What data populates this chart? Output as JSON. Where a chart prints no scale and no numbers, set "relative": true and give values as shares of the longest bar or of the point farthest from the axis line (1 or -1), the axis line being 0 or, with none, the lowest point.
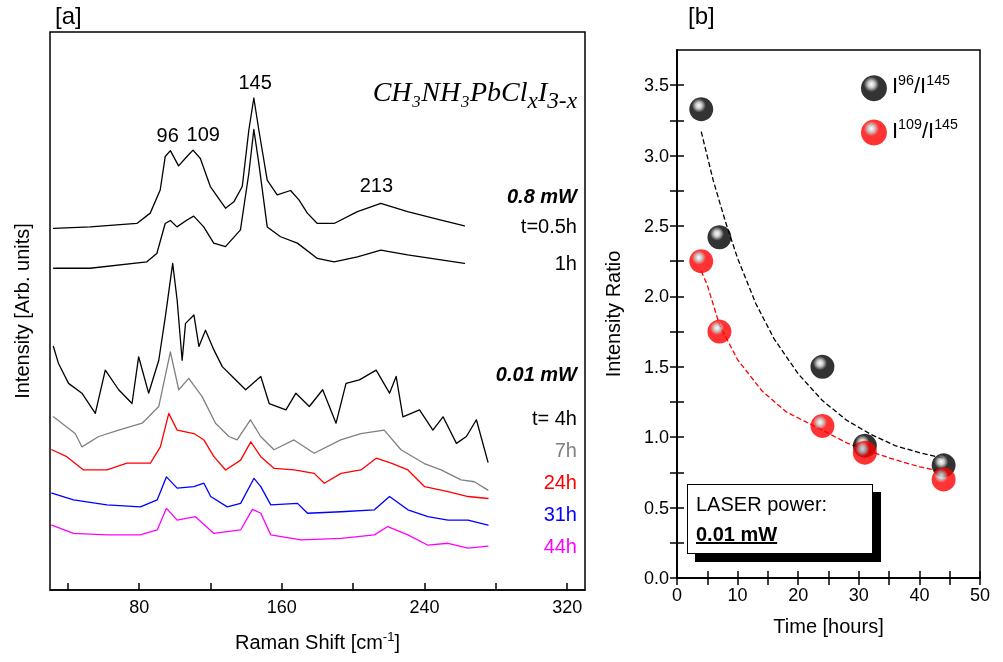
{
  "chart_data": [
    {
      "type": "line",
      "title": "[a]",
      "xlabel": "Raman Shift [cm$^{-1}$]",
      "ylabel": "Intensity [Arb. units]",
      "relative": true,
      "marker": "none",
      "xlim": [
        30,
        330
      ],
      "xticks": [
        {
          "value": 40,
          "label": null
        },
        80,
        {
          "value": 120,
          "label": null
        },
        160,
        {
          "value": 200,
          "label": null
        },
        240,
        {
          "value": 280,
          "label": null
        },
        320
      ],
      "annotations": [
        {
          "text": "96",
          "x": 96,
          "y": 0.893
        },
        {
          "text": "109",
          "x": 110,
          "y": 0.894
        },
        {
          "text": "145",
          "x": 145,
          "y": 1
        },
        {
          "text": "213",
          "x": 213,
          "y": 0.79
        },
        "CH₃NH₃PbCl$_{x}$I$_{3-x}$",
        "0.8 mW",
        "0.01 mW"
      ],
      "series": [
        {
          "name": "t=0.5h",
          "color": "#000000",
          "x": [
            32,
            52.5,
            78.7,
            86.2,
            91.8,
            94.6,
            97.5,
            102.1,
            106.8,
            110.2,
            114.3,
            119.9,
            128.4,
            133.1,
            137.8,
            141.5,
            144.3,
            147.1,
            151.8,
            157.4,
            164.9,
            169.6,
            174.3,
            179.9,
            189.3,
            202.4,
            215.5,
            230.5,
            249.3,
            262.4
          ],
          "values": [
            0.735,
            0.738,
            0.745,
            0.766,
            0.813,
            0.881,
            0.893,
            0.862,
            0.881,
            0.894,
            0.877,
            0.82,
            0.776,
            0.789,
            0.82,
            0.935,
            1,
            0.935,
            0.833,
            0.803,
            0.812,
            0.793,
            0.766,
            0.745,
            0.745,
            0.769,
            0.786,
            0.769,
            0.752,
            0.74
          ]
        },
        {
          "name": "1h",
          "color": "#000000",
          "x": [
            32,
            52.5,
            84.3,
            89.9,
            94.6,
            97.5,
            101.2,
            106.8,
            110.6,
            116.2,
            121.8,
            128.4,
            136.8,
            141.5,
            144.3,
            147.1,
            151.8,
            159.3,
            168.7,
            179.9,
            189.3,
            202.4,
            215.5,
            230.5,
            249.3,
            262.4
          ],
          "values": [
            0.654,
            0.654,
            0.667,
            0.684,
            0.745,
            0.751,
            0.738,
            0.752,
            0.76,
            0.738,
            0.705,
            0.698,
            0.732,
            0.847,
            0.936,
            0.867,
            0.738,
            0.718,
            0.705,
            0.674,
            0.667,
            0.677,
            0.691,
            0.681,
            0.671,
            0.664
          ]
        },
        {
          "name": "t= 4h",
          "color": "#000000",
          "x": [
            31.9,
            34.7,
            40.4,
            47.9,
            55.4,
            61,
            68.5,
            76,
            79.7,
            85.3,
            91,
            94.7,
            98.8,
            101.3,
            104.1,
            106,
            110.7,
            113.5,
            117.2,
            121.9,
            126.6,
            132.2,
            139.7,
            148.2,
            152.9,
            162.3,
            167.9,
            175.4,
            182.9,
            190.4,
            196,
            203.5,
            212.9,
            220.4,
            224.1,
            227.9,
            237.2,
            244.7,
            250.4,
            257.9,
            263.5,
            269.1,
            275.6
          ],
          "values": [
            0.495,
            0.461,
            0.42,
            0.4,
            0.359,
            0.447,
            0.407,
            0.379,
            0.474,
            0.4,
            0.467,
            0.556,
            0.664,
            0.589,
            0.467,
            0.542,
            0.559,
            0.495,
            0.528,
            0.488,
            0.454,
            0.434,
            0.407,
            0.434,
            0.379,
            0.366,
            0.4,
            0.373,
            0.407,
            0.339,
            0.42,
            0.427,
            0.447,
            0.4,
            0.434,
            0.352,
            0.366,
            0.325,
            0.352,
            0.298,
            0.312,
            0.346,
            0.26
          ]
        },
        {
          "name": "7h",
          "color": "#808080",
          "x": [
            31.9,
            44.1,
            47.9,
            57.3,
            68.5,
            81.7,
            91,
            97.5,
            102.2,
            107.8,
            115.3,
            122.8,
            130.3,
            134.9,
            142.4,
            148.1,
            155.6,
            166.8,
            178.1,
            193,
            204.3,
            217.4,
            226.8,
            239.9,
            249.3,
            260.5,
            268,
            275.5
          ],
          "values": [
            0.352,
            0.318,
            0.291,
            0.312,
            0.325,
            0.339,
            0.373,
            0.484,
            0.407,
            0.43,
            0.393,
            0.339,
            0.312,
            0.305,
            0.346,
            0.312,
            0.285,
            0.305,
            0.278,
            0.305,
            0.318,
            0.325,
            0.285,
            0.257,
            0.244,
            0.224,
            0.22,
            0.203
          ]
        },
        {
          "name": "24h",
          "color": "#ff0000",
          "x": [
            31,
            39.4,
            48.8,
            61.9,
            73.2,
            86.3,
            91.9,
            96.6,
            101.3,
            110.7,
            116.3,
            121.9,
            128.5,
            136.9,
            142.6,
            148.2,
            155.7,
            166.9,
            178.2,
            183.8,
            193.2,
            204.4,
            212.9,
            221.3,
            230.7,
            240.1,
            253.2,
            264.4,
            275.6
          ],
          "values": [
            0.285,
            0.271,
            0.244,
            0.244,
            0.258,
            0.258,
            0.291,
            0.359,
            0.325,
            0.318,
            0.305,
            0.271,
            0.244,
            0.264,
            0.301,
            0.271,
            0.247,
            0.244,
            0.237,
            0.217,
            0.237,
            0.244,
            0.268,
            0.258,
            0.244,
            0.21,
            0.2,
            0.19,
            0.186
          ]
        },
        {
          "name": "31h",
          "color": "#0000ff",
          "x": [
            31,
            43.2,
            61.9,
            80.7,
            90.1,
            95.3,
            101.3,
            110.7,
            116.3,
            120.1,
            129.4,
            136.9,
            144.4,
            148.2,
            153.8,
            168.8,
            174.4,
            193.2,
            211.9,
            220.4,
            230.7,
            241.9,
            253.2,
            264.4,
            275.6
          ],
          "values": [
            0.197,
            0.183,
            0.173,
            0.169,
            0.183,
            0.23,
            0.207,
            0.21,
            0.217,
            0.19,
            0.169,
            0.176,
            0.227,
            0.21,
            0.173,
            0.176,
            0.156,
            0.159,
            0.163,
            0.19,
            0.163,
            0.149,
            0.142,
            0.142,
            0.132
          ]
        },
        {
          "name": "44h",
          "color": "#ff00ff",
          "x": [
            31,
            43.2,
            61.9,
            80.7,
            90.1,
            95.3,
            101.3,
            111.6,
            121.9,
            136.9,
            143.5,
            148.2,
            153.8,
            170.7,
            193.2,
            211.9,
            219.4,
            230.7,
            241.9,
            253.2,
            264.4,
            275.6
          ],
          "values": [
            0.132,
            0.115,
            0.112,
            0.112,
            0.122,
            0.166,
            0.142,
            0.149,
            0.115,
            0.122,
            0.164,
            0.156,
            0.112,
            0.102,
            0.105,
            0.112,
            0.129,
            0.112,
            0.091,
            0.095,
            0.085,
            0.089
          ]
        }
      ]
    },
    {
      "type": "scatter",
      "title": "[b]",
      "xlabel": "Time [hours]",
      "ylabel": "Intensity Ratio",
      "legend": "top right",
      "marker": "circle",
      "xlim": [
        0,
        50
      ],
      "ylim": [
        0,
        3.75
      ],
      "xticks": [
        0,
        {
          "value": 5,
          "label": null
        },
        10,
        {
          "value": 15,
          "label": null
        },
        20,
        {
          "value": 25,
          "label": null
        },
        30,
        {
          "value": 35,
          "label": null
        },
        40,
        {
          "value": 45,
          "label": null
        },
        50
      ],
      "yticks": [
        {
          "value": 0,
          "label": "0.0"
        },
        {
          "value": 0.25,
          "label": null
        },
        0.5,
        {
          "value": 0.75,
          "label": null
        },
        {
          "value": 1,
          "label": "1.0"
        },
        {
          "value": 1.25,
          "label": null
        },
        1.5,
        {
          "value": 1.75,
          "label": null
        },
        {
          "value": 2,
          "label": "2.0"
        },
        {
          "value": 2.25,
          "label": null
        },
        2.5,
        {
          "value": 2.75,
          "label": null
        },
        {
          "value": 3,
          "label": "3.0"
        },
        {
          "value": 3.25,
          "label": null
        },
        3.5
      ],
      "annotations": [
        "LASER power:",
        "0.01 mW"
      ],
      "series": [
        {
          "name": "I$^{96}$/I$^{145}$",
          "color": "#000000",
          "x": [
            4,
            7,
            24,
            31,
            44
          ],
          "values": [
            3.33,
            2.42,
            1.5,
            0.94,
            0.8
          ]
        },
        {
          "name": "I$^{109}$/I$^{145}$",
          "color": "#ff0000",
          "x": [
            4,
            7,
            24,
            31,
            44
          ],
          "values": [
            2.25,
            1.75,
            1.08,
            0.89,
            0.7
          ]
        },
        {
          "type": "line",
          "color": "#000000",
          "marker": "none",
          "line_style": "dashed",
          "x": [
            4,
            6,
            8,
            10,
            13,
            16,
            20,
            24,
            28,
            32,
            36,
            40,
            44
          ],
          "values": [
            3.17,
            2.82,
            2.53,
            2.27,
            1.95,
            1.7,
            1.45,
            1.26,
            1.12,
            1.02,
            0.94,
            0.89,
            0.85
          ]
        },
        {
          "type": "line",
          "color": "#ff0000",
          "marker": "none",
          "line_style": "dashed",
          "x": [
            4,
            5,
            7,
            10,
            14,
            18,
            24,
            28,
            31,
            36,
            40,
            44
          ],
          "values": [
            2.18,
            2.08,
            1.8,
            1.55,
            1.33,
            1.18,
            1.05,
            0.96,
            0.91,
            0.84,
            0.79,
            0.755
          ]
        }
      ]
    }
  ]
}
